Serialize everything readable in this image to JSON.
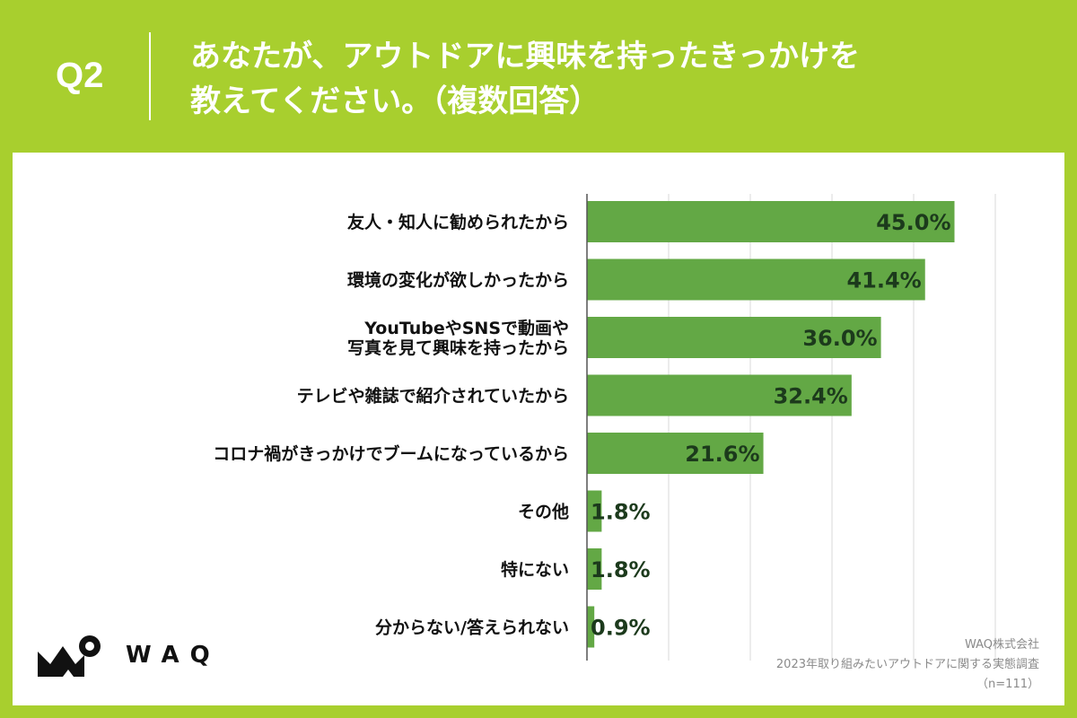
{
  "question": {
    "label": "Q2",
    "title_line1": "あなたが、アウトドアに興味を持ったきっかけを",
    "title_line2": "教えてください。（複数回答）"
  },
  "logo": {
    "text": "WAQ"
  },
  "source": {
    "company": "WAQ株式会社",
    "survey": "2023年取り組みたいアウトドアに関する実態調査",
    "sample": "（n=111）"
  },
  "colors": {
    "background": "#a8cf2e",
    "bar": "#63a845",
    "grid": "#d9d9d9"
  },
  "chart_data": {
    "type": "bar",
    "orientation": "horizontal",
    "categories": [
      "友人・知人に勧められたから",
      "環境の変化が欲しかったから",
      "YouTubeやSNSで動画や\n写真を見て興味を持ったから",
      "テレビや雑誌で紹介されていたから",
      "コロナ禍がきっかけでブームになっているから",
      "その他",
      "特にない",
      "分からない/答えられない"
    ],
    "values": [
      45.0,
      41.4,
      36.0,
      32.4,
      21.6,
      1.8,
      1.8,
      0.9
    ],
    "value_labels": [
      "45.0%",
      "41.4%",
      "36.0%",
      "32.4%",
      "21.6%",
      "1.8%",
      "1.8%",
      "0.9%"
    ],
    "unit": "%",
    "xlim": [
      0,
      50
    ],
    "grid": true,
    "title": "",
    "xlabel": "",
    "ylabel": ""
  }
}
